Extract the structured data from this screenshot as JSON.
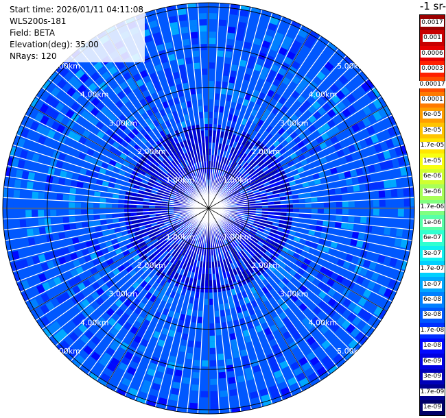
{
  "info": {
    "start_time": "Start time: 2026/01/11 04:11:08",
    "station": "WLS200s-181",
    "field": "Field: BETA",
    "elevation": "Elevation(deg): 35.00",
    "nrays": "NRays: 120"
  },
  "colorbar": {
    "unit_label": "-1 sr-",
    "labels": [
      "0.0017",
      "0.001",
      "0.0006",
      "0.0003",
      "0.00017",
      "0.0001",
      "6e-05",
      "3e-05",
      "1.7e-05",
      "1e-05",
      "6e-06",
      "3e-06",
      "1.7e-06",
      "1e-06",
      "6e-07",
      "3e-07",
      "1.7e-07",
      "1e-07",
      "6e-08",
      "3e-08",
      "1.7e-08",
      "1e-08",
      "6e-09",
      "3e-09",
      "1.7e-09",
      "1e-09"
    ],
    "colors": [
      "#9a0000",
      "#c80000",
      "#e60000",
      "#ff2000",
      "#ff4e00",
      "#ff7a00",
      "#ff9e00",
      "#ffc400",
      "#ffe600",
      "#f8ff10",
      "#d0ff30",
      "#a8ff58",
      "#80ff80",
      "#58ffa8",
      "#30ffd0",
      "#10f0f0",
      "#00d0ff",
      "#00a8ff",
      "#0080ff",
      "#0058ff",
      "#0030ff",
      "#0008ff",
      "#0000e0",
      "#0000b8",
      "#000090",
      "#000068"
    ]
  },
  "chart_data": {
    "type": "heatmap",
    "projection": "polar (PPI scan)",
    "elevation_deg": 35.0,
    "n_rays": 120,
    "range_rings_km": [
      1,
      2,
      3,
      4,
      5
    ],
    "ring_labels": [
      "1.00km",
      "2.00km",
      "3.00km",
      "4.00km",
      "5.00km"
    ],
    "max_range_km": 5.0,
    "color_scale": "log",
    "value_range": [
      1e-09,
      0.0017
    ],
    "dominant_values": "mostly 1e-08 to 1e-07; higher 1e-09 to 3e-09 patches near center"
  }
}
